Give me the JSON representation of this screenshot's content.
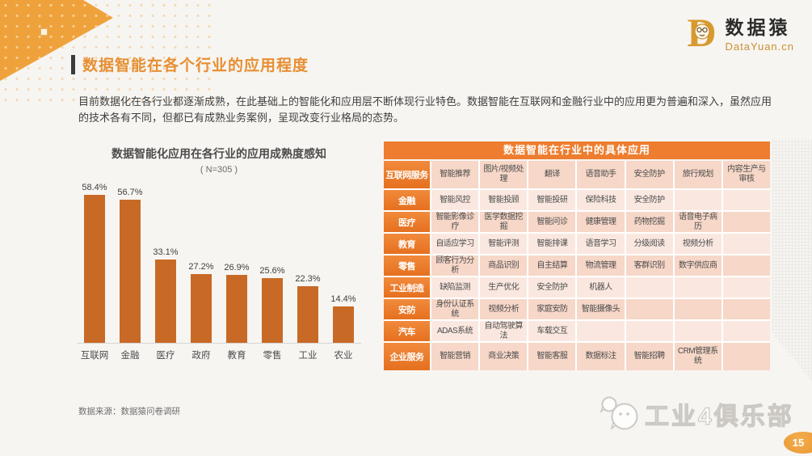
{
  "page": {
    "title": "数据智能在各个行业的应用程度",
    "intro": "目前数据化在各行业都逐渐成熟，在此基础上的智能化和应用层不断体现行业特色。数据智能在互联网和金融行业中的应用更为普遍和深入，虽然应用的技术各有不同，但都已有成熟业务案例，呈现改变行业格局的态势。",
    "source_note": "数据来源：数据猿问卷调研",
    "watermark_text": "工业4俱乐部",
    "page_number": "15"
  },
  "logo": {
    "monogram": "D",
    "name_cn": "数据猿",
    "domain": "DataYuan.cn"
  },
  "chart_data": {
    "type": "bar",
    "title": "数据智能化应用在各行业的应用成熟度感知",
    "subtitle": "( N=305 )",
    "categories": [
      "互联网",
      "金融",
      "医疗",
      "政府",
      "教育",
      "零售",
      "工业",
      "农业"
    ],
    "values": [
      58.4,
      56.7,
      33.1,
      27.2,
      26.9,
      25.6,
      22.3,
      14.4
    ],
    "value_suffix": "%",
    "ylim": [
      0,
      64
    ],
    "grid": false,
    "bar_color": "#C86A26"
  },
  "table": {
    "title": "数据智能在行业中的具体应用",
    "rows": [
      {
        "header": "互联网服务",
        "cells": [
          "智能推荐",
          "图片/视频处理",
          "翻译",
          "语音助手",
          "安全防护",
          "旅行规划",
          "内容生产与审核"
        ]
      },
      {
        "header": "金融",
        "cells": [
          "智能风控",
          "智能投顾",
          "智能投研",
          "保险科技",
          "安全防护",
          "",
          ""
        ]
      },
      {
        "header": "医疗",
        "cells": [
          "智能影像诊疗",
          "医学数据挖掘",
          "智能问诊",
          "健康管理",
          "药物挖掘",
          "语音电子病历",
          ""
        ]
      },
      {
        "header": "教育",
        "cells": [
          "自适应学习",
          "智能评测",
          "智能排课",
          "语音学习",
          "分级阅读",
          "视频分析",
          ""
        ]
      },
      {
        "header": "零售",
        "cells": [
          "顾客行为分析",
          "商品识别",
          "自主结算",
          "物流管理",
          "客群识别",
          "数字供应商",
          ""
        ]
      },
      {
        "header": "工业制造",
        "cells": [
          "缺陷监测",
          "生产优化",
          "安全防护",
          "机器人",
          "",
          "",
          ""
        ]
      },
      {
        "header": "安防",
        "cells": [
          "身份认证系统",
          "视频分析",
          "家庭安防",
          "智能摄像头",
          "",
          "",
          ""
        ]
      },
      {
        "header": "汽车",
        "cells": [
          "ADAS系统",
          "自动驾驶算法",
          "车载交互",
          "",
          "",
          "",
          ""
        ]
      },
      {
        "header": "企业服务",
        "cells": [
          "智能营销",
          "商业决策",
          "智能客服",
          "数据标注",
          "智能招聘",
          "CRM管理系统",
          ""
        ]
      }
    ]
  },
  "colors": {
    "accent_orange": "#EE7D2F",
    "title_orange": "#E78F33",
    "bar_orange": "#C86A26",
    "row_dark": "#F6D7C8",
    "row_light": "#FAE8E0",
    "gold": "#D79A2E",
    "background": "#F7F5F1"
  }
}
